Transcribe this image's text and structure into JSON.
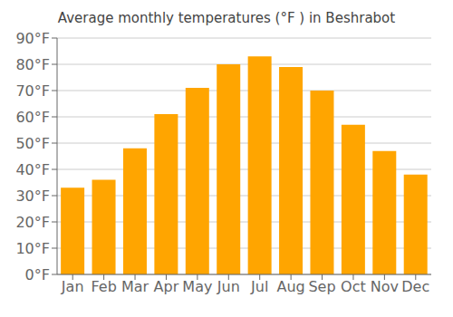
{
  "chart_data": {
    "type": "bar",
    "title": "Average monthly temperatures (°F ) in Beshrabot",
    "categories": [
      "Jan",
      "Feb",
      "Mar",
      "Apr",
      "May",
      "Jun",
      "Jul",
      "Aug",
      "Sep",
      "Oct",
      "Nov",
      "Dec"
    ],
    "values": [
      33,
      36,
      48,
      61,
      71,
      80,
      83,
      79,
      70,
      57,
      47,
      38
    ],
    "color": "#FFA500",
    "ylim": [
      0,
      90
    ],
    "yticks": [
      {
        "value": 0,
        "label": "0°F"
      },
      {
        "value": 10,
        "label": "10°F"
      },
      {
        "value": 20,
        "label": "20°F"
      },
      {
        "value": 30,
        "label": "30°F"
      },
      {
        "value": 40,
        "label": "40°F"
      },
      {
        "value": 50,
        "label": "50°F"
      },
      {
        "value": 60,
        "label": "60°F"
      },
      {
        "value": 70,
        "label": "70°F"
      },
      {
        "value": 80,
        "label": "80°F"
      },
      {
        "value": 90,
        "label": "90°F"
      }
    ],
    "grid": true
  }
}
